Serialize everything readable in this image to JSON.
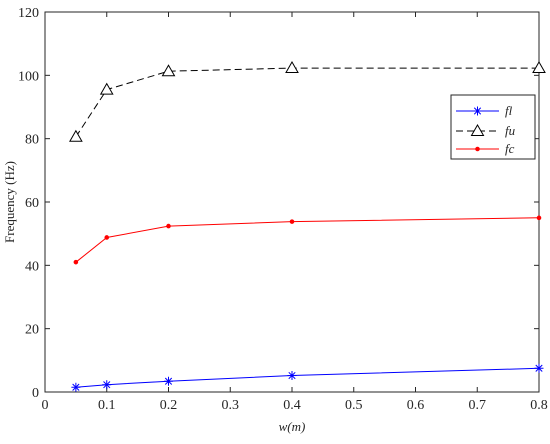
{
  "chart_data": {
    "type": "line",
    "xlabel": "w(m)",
    "ylabel": "Frequency (Hz)",
    "xlim": [
      0,
      0.8
    ],
    "ylim": [
      0,
      120
    ],
    "xticks": [
      "0",
      "0.1",
      "0.2",
      "0.3",
      "0.4",
      "0.5",
      "0.6",
      "0.7",
      "0.8"
    ],
    "yticks": [
      "0",
      "20",
      "40",
      "60",
      "80",
      "100",
      "120"
    ],
    "grid": false,
    "legend_position": "right, upper-middle",
    "series": [
      {
        "name": "fl",
        "x": [
          0.05,
          0.1,
          0.2,
          0.4,
          0.8
        ],
        "y": [
          1.5,
          2.3,
          3.4,
          5.2,
          7.5
        ],
        "color": "#0000ff",
        "line": "solid",
        "marker": "asterisk"
      },
      {
        "name": "fu",
        "x": [
          0.05,
          0.1,
          0.2,
          0.4,
          0.8
        ],
        "y": [
          80.6,
          95.5,
          101.3,
          102.3,
          102.3
        ],
        "color": "#000000",
        "line": "dashed",
        "marker": "triangle"
      },
      {
        "name": "fc",
        "x": [
          0.05,
          0.1,
          0.2,
          0.4,
          0.8
        ],
        "y": [
          41.0,
          48.8,
          52.4,
          53.8,
          55.0
        ],
        "color": "#ff0000",
        "line": "solid",
        "marker": "dot"
      }
    ]
  }
}
